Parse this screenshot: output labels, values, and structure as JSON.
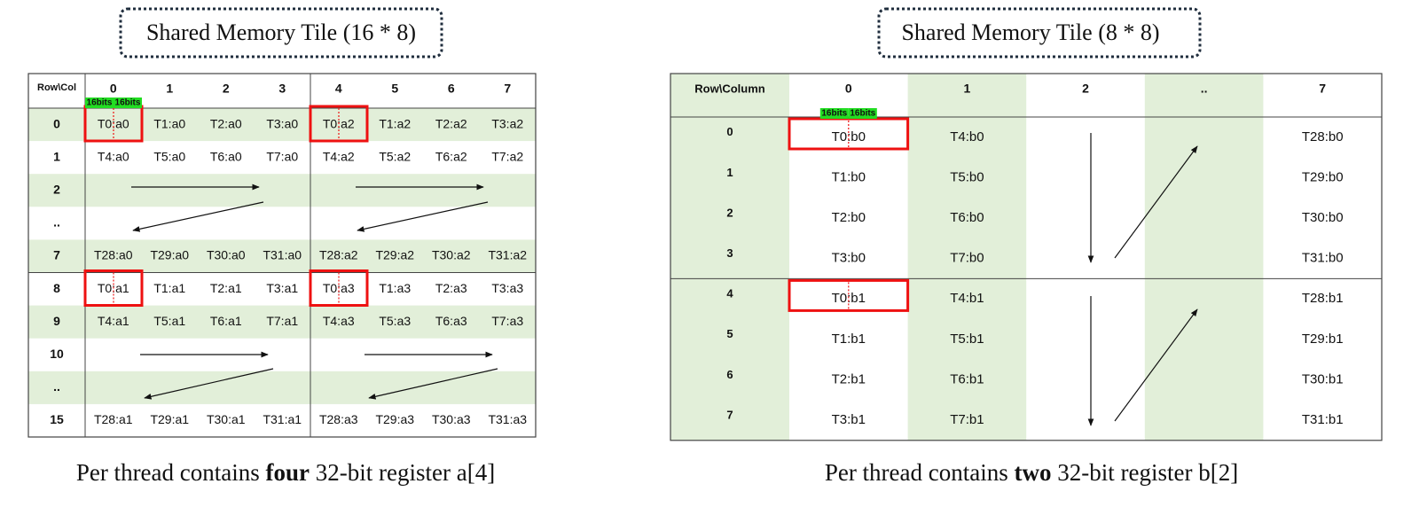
{
  "left": {
    "title": "Shared Memory Tile (16 * 8)",
    "header": [
      "Row\\Col",
      "0",
      "1",
      "2",
      "3",
      "4",
      "5",
      "6",
      "7"
    ],
    "bits": [
      "16bits",
      "16bits"
    ],
    "rows": [
      {
        "label": "0",
        "cells": [
          "T0:a0",
          "T1:a0",
          "T2:a0",
          "T3:a0",
          "T0:a2",
          "T1:a2",
          "T2:a2",
          "T3:a2"
        ]
      },
      {
        "label": "1",
        "cells": [
          "T4:a0",
          "T5:a0",
          "T6:a0",
          "T7:a0",
          "T4:a2",
          "T5:a2",
          "T6:a2",
          "T7:a2"
        ]
      },
      {
        "label": "2"
      },
      {
        "label": ".."
      },
      {
        "label": "7",
        "cells": [
          "T28:a0",
          "T29:a0",
          "T30:a0",
          "T31:a0",
          "T28:a2",
          "T29:a2",
          "T30:a2",
          "T31:a2"
        ]
      },
      {
        "label": "8",
        "cells": [
          "T0:a1",
          "T1:a1",
          "T2:a1",
          "T3:a1",
          "T0:a3",
          "T1:a3",
          "T2:a3",
          "T3:a3"
        ]
      },
      {
        "label": "9",
        "cells": [
          "T4:a1",
          "T5:a1",
          "T6:a1",
          "T7:a1",
          "T4:a3",
          "T5:a3",
          "T6:a3",
          "T7:a3"
        ]
      },
      {
        "label": "10"
      },
      {
        "label": ".."
      },
      {
        "label": "15",
        "cells": [
          "T28:a1",
          "T29:a1",
          "T30:a1",
          "T31:a1",
          "T28:a3",
          "T29:a3",
          "T30:a3",
          "T31:a3"
        ]
      }
    ],
    "caption": [
      "Per thread contains ",
      "four",
      " 32-bit register a[4]"
    ]
  },
  "right": {
    "title": "Shared Memory Tile (8 * 8)",
    "header": [
      "Row\\Column",
      "0",
      "1",
      "2",
      "..",
      "7"
    ],
    "bits": [
      "16bits",
      "16bits"
    ],
    "rows": [
      {
        "label": "0",
        "cells": [
          "T0:b0",
          "T4:b0",
          "T28:b0"
        ]
      },
      {
        "label": "1",
        "cells": [
          "T1:b0",
          "T5:b0",
          "T29:b0"
        ]
      },
      {
        "label": "2",
        "cells": [
          "T2:b0",
          "T6:b0",
          "T30:b0"
        ]
      },
      {
        "label": "3",
        "cells": [
          "T3:b0",
          "T7:b0",
          "T31:b0"
        ]
      },
      {
        "label": "4",
        "cells": [
          "T0:b1",
          "T4:b1",
          "T28:b1"
        ]
      },
      {
        "label": "5",
        "cells": [
          "T1:b1",
          "T5:b1",
          "T29:b1"
        ]
      },
      {
        "label": "6",
        "cells": [
          "T2:b1",
          "T6:b1",
          "T30:b1"
        ]
      },
      {
        "label": "7",
        "cells": [
          "T3:b1",
          "T7:b1",
          "T31:b1"
        ]
      }
    ],
    "caption": [
      "Per thread contains ",
      "two",
      " 32-bit register b[2]"
    ]
  }
}
